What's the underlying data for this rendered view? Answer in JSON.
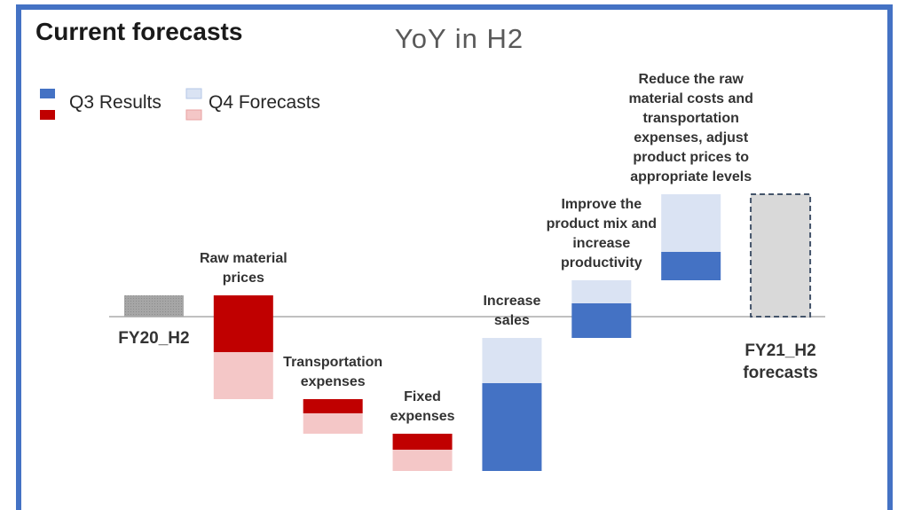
{
  "chart_data": {
    "type": "waterfall",
    "title": "Current forecasts",
    "subtitle": "YoY in H2",
    "categories": [
      "FY20_H2",
      "Raw material prices",
      "Transportation expenses",
      "Fixed expenses",
      "Increase sales",
      "Improve the product mix and increase productivity",
      "Reduce the raw material costs and transportation expenses, adjust product prices to appropriate levels",
      "FY21_H2 forecasts"
    ],
    "totals": [
      2.4,
      null,
      null,
      null,
      null,
      null,
      null,
      13.8
    ],
    "total_color": "#a6a6a6",
    "forecast_total_color": "#d9d9d9",
    "series": [
      {
        "name": "Q3 Results",
        "color": "#4472c4",
        "decrease_color": "#c00000",
        "values": [
          null,
          -6.4,
          -1.6,
          -1.8,
          9.9,
          3.9,
          3.2,
          null
        ]
      },
      {
        "name": "Q4 Forecasts",
        "color": "#dae3f3",
        "decrease_color": "#f4c7c7",
        "values": [
          null,
          -5.3,
          -2.3,
          -2.4,
          5.1,
          2.6,
          6.5,
          null
        ]
      }
    ],
    "ylim": [
      -20,
      16
    ]
  }
}
